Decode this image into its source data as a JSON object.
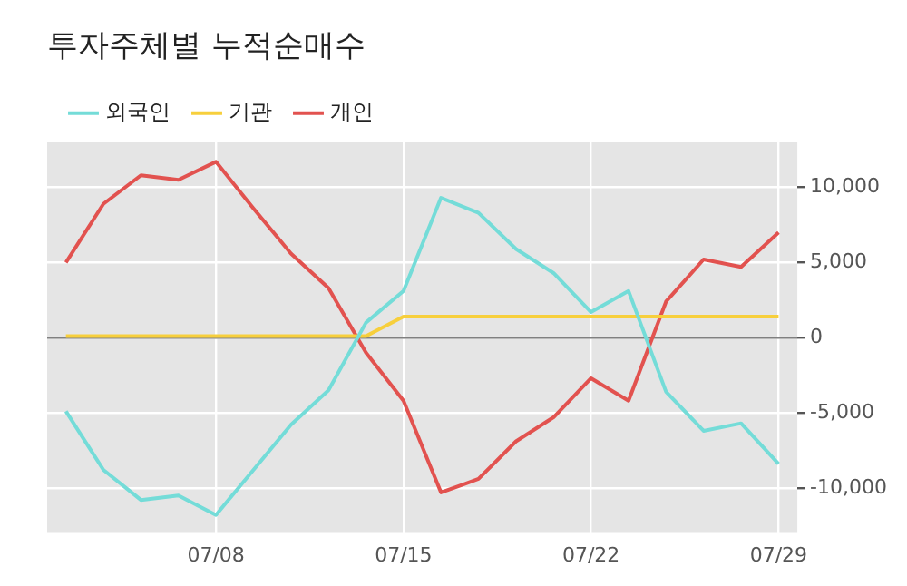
{
  "chart_data": {
    "type": "line",
    "title": "투자주체별 누적순매수",
    "categories": [
      null,
      null,
      null,
      null,
      "07/08",
      null,
      null,
      null,
      null,
      "07/15",
      null,
      null,
      null,
      null,
      "07/22",
      null,
      null,
      null,
      null,
      "07/29"
    ],
    "series": [
      {
        "name": "외국인",
        "color": "#74dcd8",
        "values": [
          -4900,
          -8800,
          -10800,
          -10500,
          -11800,
          -8800,
          -5800,
          -3500,
          1000,
          3100,
          9300,
          8300,
          5900,
          4300,
          1700,
          3100,
          -3600,
          -6200,
          -5700,
          -8400
        ]
      },
      {
        "name": "기관",
        "color": "#f7cf3c",
        "values": [
          100,
          100,
          100,
          100,
          100,
          100,
          100,
          100,
          100,
          1400,
          1400,
          1400,
          1400,
          1400,
          1400,
          1400,
          1400,
          1400,
          1400,
          1400
        ]
      },
      {
        "name": "개인",
        "color": "#e2524f",
        "values": [
          5000,
          8900,
          10800,
          10500,
          11700,
          8600,
          5600,
          3300,
          -1000,
          -4200,
          -10300,
          -9400,
          -6900,
          -5300,
          -2700,
          -4200,
          2400,
          5200,
          4700,
          7000
        ]
      }
    ],
    "ylim": [
      -13000,
      13000
    ],
    "yticks": [
      {
        "value": -10000,
        "label": "-10,000"
      },
      {
        "value": -5000,
        "label": "-5,000"
      },
      0,
      {
        "value": 5000,
        "label": "5,000"
      },
      {
        "value": 10000,
        "label": "10,000"
      }
    ],
    "ref_lines": [
      {
        "axis": "y",
        "value": 0,
        "color": "#808080"
      }
    ],
    "grid": true,
    "legend": "top left",
    "marker": "none",
    "line_style": "solid"
  }
}
